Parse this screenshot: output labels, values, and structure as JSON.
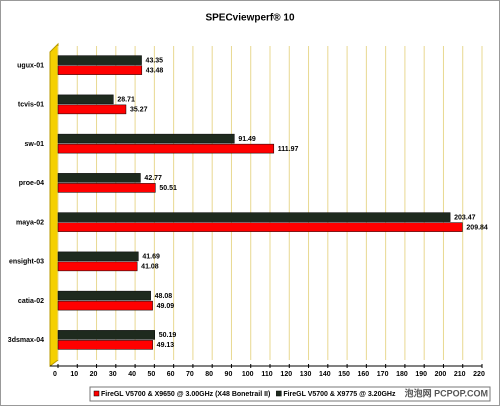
{
  "chart_data": {
    "type": "bar",
    "orientation": "horizontal",
    "title": "SPECviewperf® 10",
    "categories": [
      "ugux-01",
      "tcvis-01",
      "sw-01",
      "proe-04",
      "maya-02",
      "ensight-03",
      "catia-02",
      "3dsmax-04"
    ],
    "series": [
      {
        "name": "FireGL V5700 & X9775 @ 3.20GHz",
        "color": "#1e2a1e",
        "values": [
          43.35,
          28.71,
          91.49,
          42.77,
          203.47,
          41.69,
          48.08,
          50.19
        ]
      },
      {
        "name": "FireGL V5700 & X9650 @ 3.00GHz (X48 Bonetrail II)",
        "color": "#ff0000",
        "values": [
          43.48,
          35.27,
          111.97,
          50.51,
          209.84,
          41.08,
          49.09,
          49.13
        ]
      }
    ],
    "xlim": [
      0,
      220
    ],
    "xticks": [
      0,
      10,
      20,
      30,
      40,
      50,
      60,
      70,
      80,
      90,
      100,
      110,
      120,
      130,
      140,
      150,
      160,
      170,
      180,
      190,
      200,
      210,
      220
    ],
    "grid": true,
    "legend_position": "bottom",
    "watermark": "泡泡网 PCPOP.COM"
  }
}
